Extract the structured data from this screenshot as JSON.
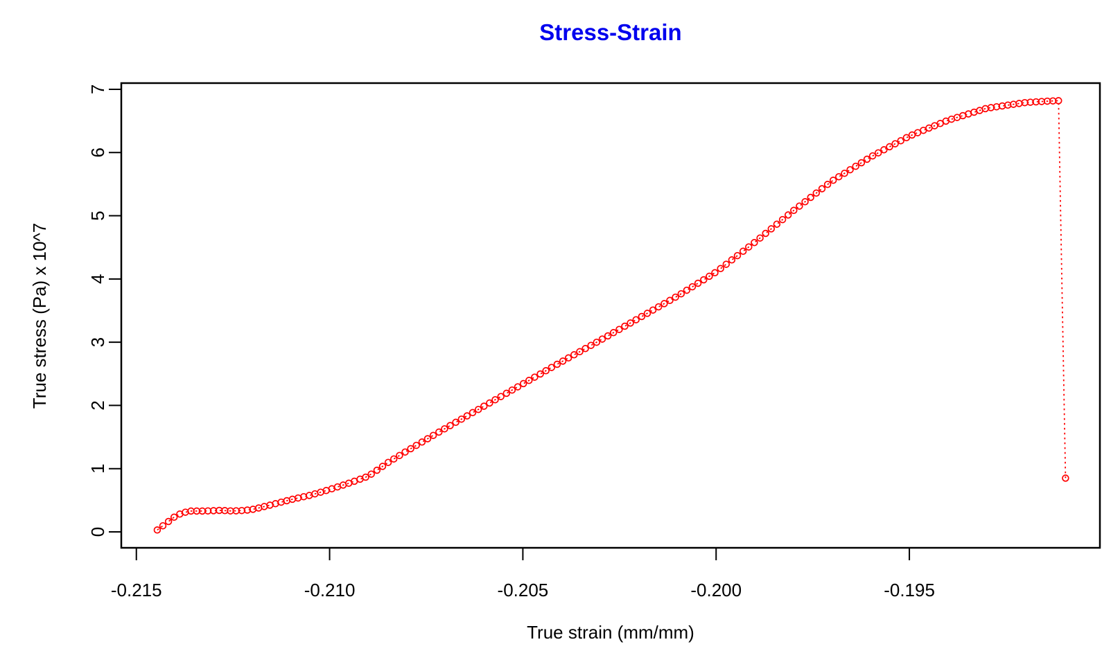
{
  "chart_data": {
    "type": "scatter",
    "title": "Stress-Strain",
    "title_color": "#0000ee",
    "xlabel": "True strain (mm/mm)",
    "ylabel": "True stress (Pa) x 10^7",
    "x_ticks": [
      -0.215,
      -0.21,
      -0.205,
      -0.2,
      -0.195
    ],
    "x_tick_labels": [
      "-0.215",
      "-0.210",
      "-0.205",
      "-0.200",
      "-0.195"
    ],
    "y_ticks": [
      0,
      1,
      2,
      3,
      4,
      5,
      6,
      7
    ],
    "y_tick_labels": [
      "0",
      "1",
      "2",
      "3",
      "4",
      "5",
      "6",
      "7"
    ],
    "xlim": [
      -0.21539,
      -0.19007
    ],
    "ylim": [
      -0.252,
      7.098
    ],
    "grid": false,
    "legend": "none",
    "frame_color": "#000000",
    "series": [
      {
        "name": "true stress vs true strain",
        "color": "#ff0000",
        "marker": "open-circle",
        "line_style": "dotted",
        "n_points_rendered": 161,
        "control_points": [
          [
            -0.21446,
            0.03
          ],
          [
            -0.21424,
            0.13
          ],
          [
            -0.21403,
            0.23
          ],
          [
            -0.21382,
            0.3
          ],
          [
            -0.21358,
            0.33
          ],
          [
            -0.2132,
            0.33
          ],
          [
            -0.21285,
            0.34
          ],
          [
            -0.2125,
            0.33
          ],
          [
            -0.21218,
            0.34
          ],
          [
            -0.21195,
            0.36
          ],
          [
            -0.2115,
            0.43
          ],
          [
            -0.211,
            0.51
          ],
          [
            -0.2105,
            0.58
          ],
          [
            -0.21,
            0.67
          ],
          [
            -0.2095,
            0.77
          ],
          [
            -0.209,
            0.88
          ],
          [
            -0.20848,
            1.1
          ],
          [
            -0.208,
            1.28
          ],
          [
            -0.207,
            1.64
          ],
          [
            -0.206,
            1.99
          ],
          [
            -0.205,
            2.34
          ],
          [
            -0.204,
            2.69
          ],
          [
            -0.203,
            3.03
          ],
          [
            -0.202,
            3.38
          ],
          [
            -0.201,
            3.73
          ],
          [
            -0.2,
            4.11
          ],
          [
            -0.199,
            4.58
          ],
          [
            -0.198,
            5.08
          ],
          [
            -0.197,
            5.55
          ],
          [
            -0.196,
            5.93
          ],
          [
            -0.195,
            6.26
          ],
          [
            -0.194,
            6.51
          ],
          [
            -0.193,
            6.7
          ],
          [
            -0.192,
            6.79
          ],
          [
            -0.1915,
            6.81
          ],
          [
            -0.19114,
            6.82
          ]
        ],
        "final_point": [
          -0.19096,
          0.85
        ],
        "peak_stress": 6.82,
        "start_point": [
          -0.21446,
          0.03
        ]
      }
    ]
  }
}
